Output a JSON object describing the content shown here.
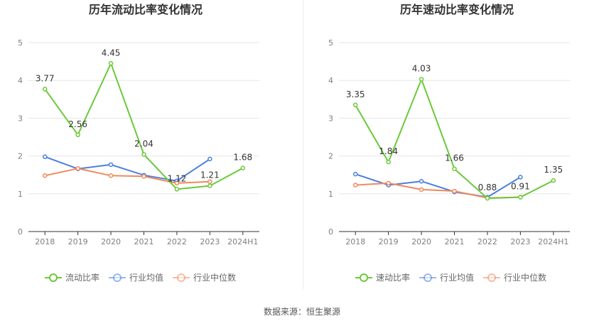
{
  "footer": {
    "source": "数据来源：恒生聚源"
  },
  "colors": {
    "main": "#6cc93a",
    "avg": "#4b7fe0",
    "median": "#ef8a5a",
    "grid": "#e6e6e6",
    "axis": "#333333"
  },
  "chart_data": [
    {
      "type": "line",
      "title": "历年流动比率变化情况",
      "categories": [
        "2018",
        "2019",
        "2020",
        "2021",
        "2022",
        "2023",
        "2024H1"
      ],
      "ylim": [
        0,
        5
      ],
      "yticks": [
        0,
        1,
        2,
        3,
        4,
        5
      ],
      "grid": true,
      "legend_position": "bottom",
      "series": [
        {
          "name": "流动比率",
          "color": "#6cc93a",
          "values": [
            3.77,
            2.56,
            4.45,
            2.04,
            1.12,
            1.21,
            1.68
          ],
          "labels": [
            "3.77",
            "2.56",
            "4.45",
            "2.04",
            "1.12",
            "1.21",
            "1.68"
          ]
        },
        {
          "name": "行业均值",
          "color": "#4b7fe0",
          "values": [
            1.98,
            1.66,
            1.77,
            1.49,
            1.34,
            1.92,
            null
          ]
        },
        {
          "name": "行业中位数",
          "color": "#ef8a5a",
          "values": [
            1.48,
            1.67,
            1.48,
            1.46,
            1.28,
            1.32,
            null
          ]
        }
      ]
    },
    {
      "type": "line",
      "title": "历年速动比率变化情况",
      "categories": [
        "2018",
        "2019",
        "2020",
        "2021",
        "2022",
        "2023",
        "2024H1"
      ],
      "ylim": [
        0,
        5
      ],
      "yticks": [
        0,
        1,
        2,
        3,
        4,
        5
      ],
      "grid": true,
      "legend_position": "bottom",
      "series": [
        {
          "name": "速动比率",
          "color": "#6cc93a",
          "values": [
            3.35,
            1.84,
            4.03,
            1.66,
            0.88,
            0.91,
            1.35
          ],
          "labels": [
            "3.35",
            "1.84",
            "4.03",
            "1.66",
            "0.88",
            "0.91",
            "1.35"
          ]
        },
        {
          "name": "行业均值",
          "color": "#4b7fe0",
          "values": [
            1.52,
            1.23,
            1.33,
            1.05,
            0.91,
            1.44,
            null
          ]
        },
        {
          "name": "行业中位数",
          "color": "#ef8a5a",
          "values": [
            1.23,
            1.28,
            1.11,
            1.07,
            0.89,
            0.91,
            null
          ]
        }
      ]
    }
  ]
}
